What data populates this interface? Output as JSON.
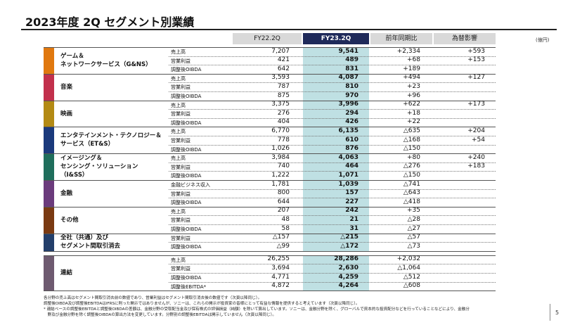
{
  "header": {
    "title": "2023年度 2Q セグメント別業績",
    "unit": "(億円)",
    "columns": [
      "FY22.2Q",
      "FY23.2Q",
      "前年同期比",
      "為替影響"
    ]
  },
  "segments": [
    {
      "name": [
        "ゲーム＆",
        "ネットワークサービス（G&NS）"
      ],
      "color": "#e0780f",
      "rows": [
        [
          "売上高",
          "7,207",
          "9,541",
          "+2,334",
          "+593"
        ],
        [
          "営業利益",
          "421",
          "489",
          "+68",
          "+153"
        ],
        [
          "調整後OIBDA",
          "642",
          "831",
          "+189"
        ]
      ]
    },
    {
      "name": [
        "音楽"
      ],
      "color": "#c2304c",
      "rows": [
        [
          "売上高",
          "3,593",
          "4,087",
          "+494",
          "+127"
        ],
        [
          "営業利益",
          "787",
          "810",
          "+23"
        ],
        [
          "調整後OIBDA",
          "875",
          "970",
          "+96"
        ]
      ]
    },
    {
      "name": [
        "映画"
      ],
      "color": "#b38a14",
      "rows": [
        [
          "売上高",
          "3,375",
          "3,996",
          "+622",
          "+173"
        ],
        [
          "営業利益",
          "276",
          "294",
          "+18"
        ],
        [
          "調整後OIBDA",
          "404",
          "426",
          "+22"
        ]
      ]
    },
    {
      "name": [
        "エンタテインメント・テクノロジー＆",
        "サービス（ET&S）"
      ],
      "color": "#1b3a7c",
      "rows": [
        [
          "売上高",
          "6,770",
          "6,135",
          "△635",
          "+204"
        ],
        [
          "営業利益",
          "778",
          "610",
          "△168",
          "+54"
        ],
        [
          "調整後OIBDA",
          "1,026",
          "876",
          "△150"
        ]
      ]
    },
    {
      "name": [
        "イメージング＆",
        "センシング・ソリューション",
        "（I&SS）"
      ],
      "color": "#1f6e5c",
      "rows": [
        [
          "売上高",
          "3,984",
          "4,063",
          "+80",
          "+240"
        ],
        [
          "営業利益",
          "740",
          "464",
          "△276",
          "+183"
        ],
        [
          "調整後OIBDA",
          "1,222",
          "1,071",
          "△150"
        ]
      ]
    },
    {
      "name": [
        "金融"
      ],
      "color": "#6b3b7c",
      "rows": [
        [
          "金融ビジネス収入",
          "1,781",
          "1,039",
          "△741"
        ],
        [
          "営業利益",
          "800",
          "157",
          "△643"
        ],
        [
          "調整後OIBDA",
          "644",
          "227",
          "△418"
        ]
      ]
    },
    {
      "name": [
        "その他"
      ],
      "color": "#7a3a12",
      "rows": [
        [
          "売上高",
          "207",
          "242",
          "+35"
        ],
        [
          "営業利益",
          "48",
          "21",
          "△28"
        ],
        [
          "調整後OIBDA",
          "58",
          "31",
          "△27"
        ]
      ]
    },
    {
      "name": [
        "全社（共通）及び",
        "セグメント間取引消去"
      ],
      "color": "#233f6b",
      "rows": [
        [
          "営業利益",
          "△157",
          "△215",
          "△57"
        ],
        [
          "調整後OIBDA",
          "△99",
          "△172",
          "△73"
        ]
      ]
    },
    {
      "name": [
        "連結"
      ],
      "color": "#6e5a70",
      "rows": [
        [
          "売上高",
          "26,255",
          "28,286",
          "+2,032"
        ],
        [
          "営業利益",
          "3,694",
          "2,630",
          "△1,064"
        ],
        [
          "調整後OIBDA",
          "4,771",
          "4,259",
          "△512"
        ],
        [
          "調整後EBITDA*",
          "4,872",
          "4,264",
          "△608"
        ]
      ]
    }
  ],
  "footnotes": [
    "各分野の売上高はセグメント間取引消去前の数値であり、営業利益はセグメント間取引消去後の数値です（次頁以降同じ）。",
    "調整後OIBDA及び調整後EBITDAはIFRSに則った開示ではありませんが、ソニーは、これらの開示が投資家の皆様にとって有益な情報を提供すると考えています（次頁以降同じ）。",
    "* 連結ベースの調整後EBITDAと調整後OIBDAの差額は、金融分野の受取配当金及び保有株式の評価損益（純額）を除いて算出しています。ソニーは、金融分野を除く、グローバルで資本的な投資配分などを行っていることなどにより、金融分",
    "　野及び金融分野を除く調整後OIBDAの算出方法を変更しています。分野別の調整後EBITDAは開示していません（次頁以降同じ）。"
  ],
  "page_number": "5"
}
